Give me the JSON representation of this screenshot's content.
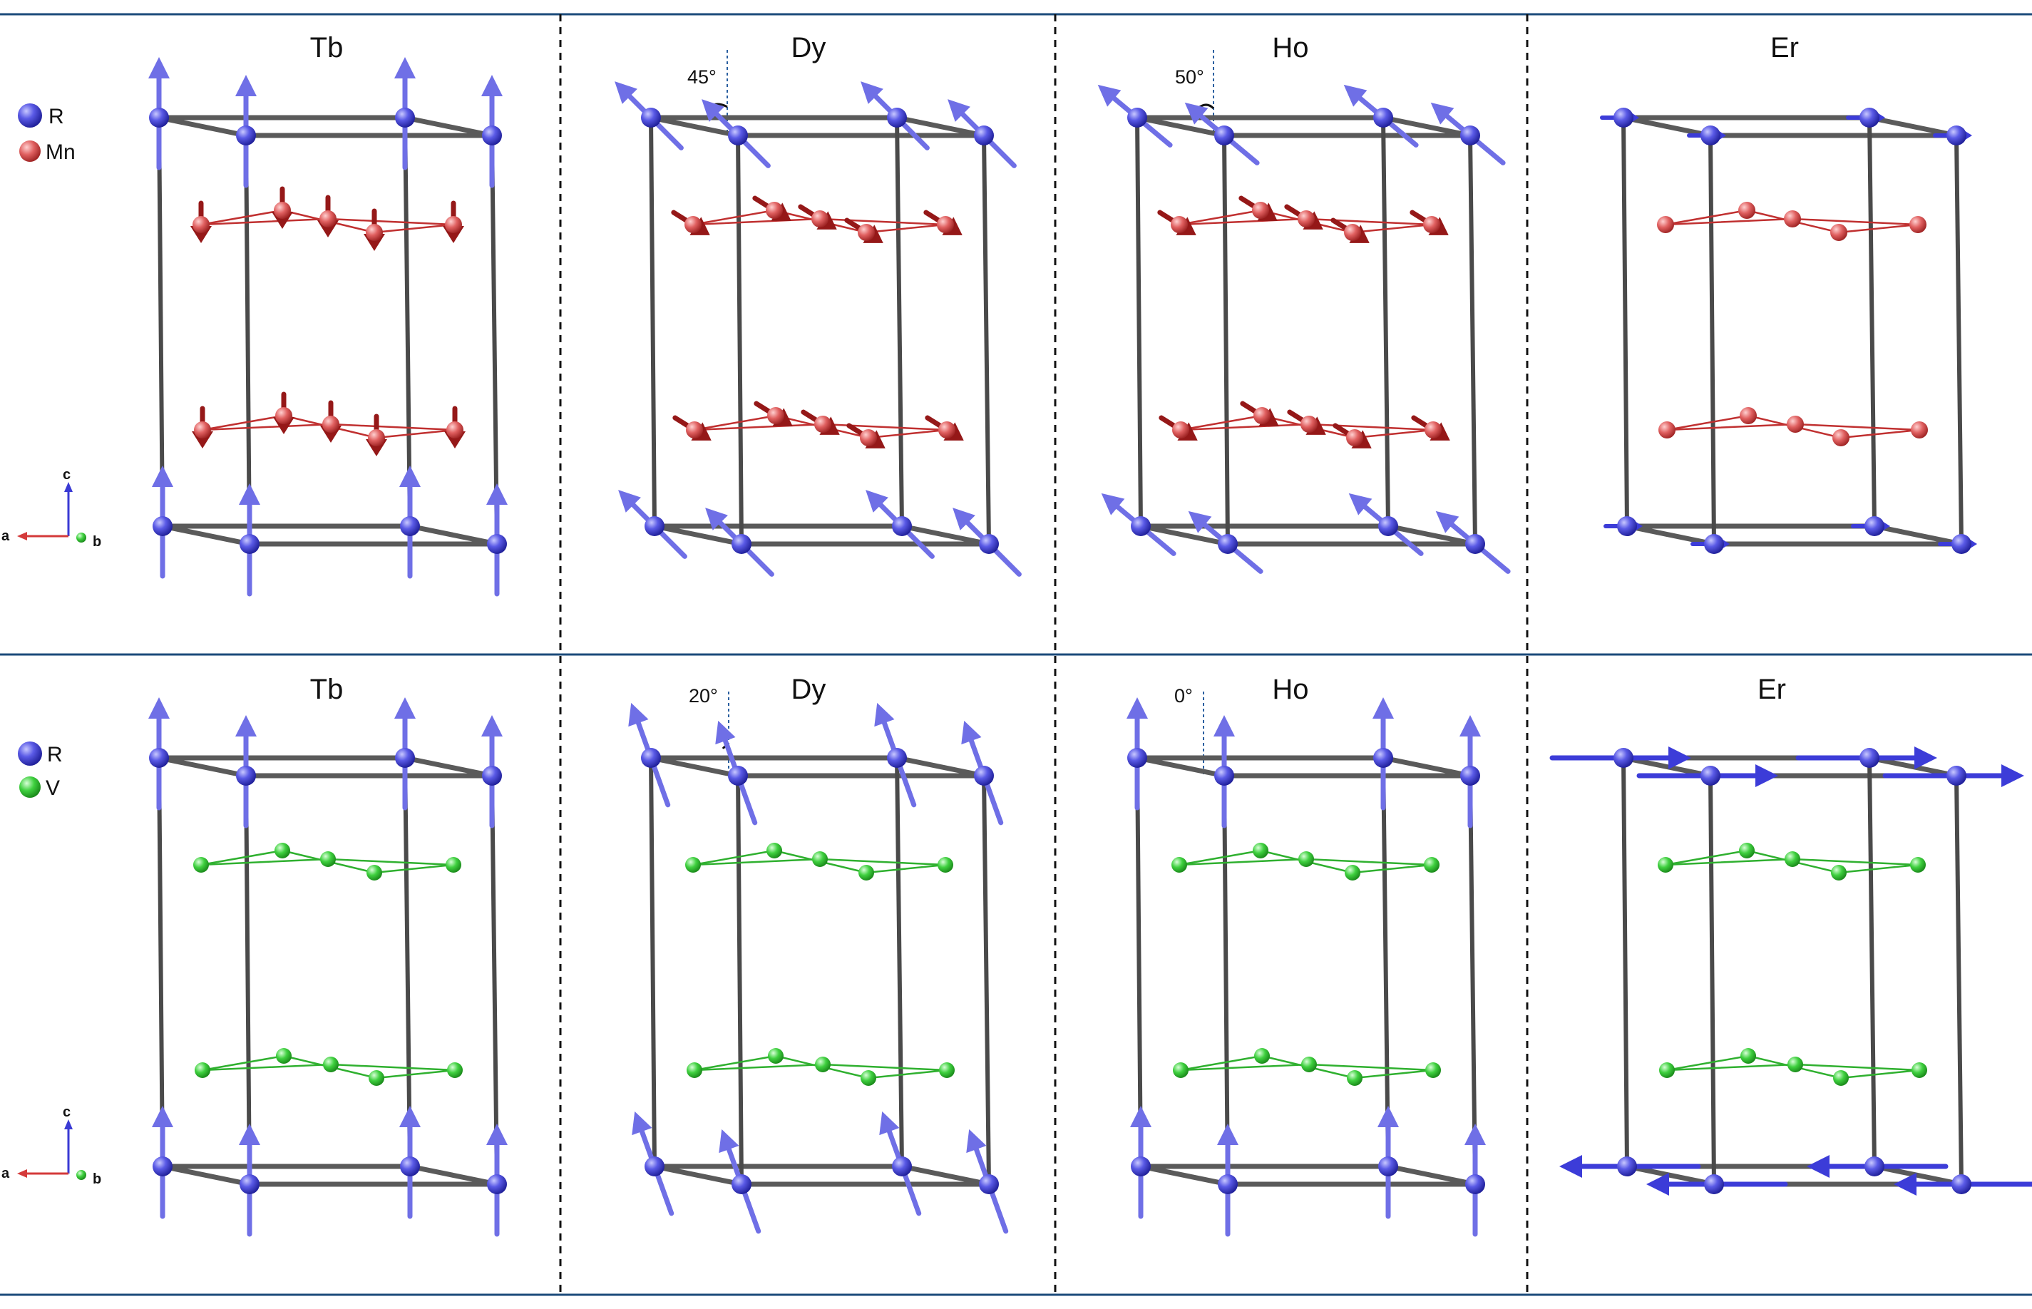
{
  "rows": [
    {
      "legend": {
        "r": "R",
        "b": "Mn"
      },
      "axes": {
        "c": "c",
        "a": "a",
        "b": "b"
      },
      "panels": [
        {
          "title": "Tb",
          "angle": ""
        },
        {
          "title": "Dy",
          "angle": "45°"
        },
        {
          "title": "Ho",
          "angle": "50°"
        },
        {
          "title": "Er",
          "angle": ""
        }
      ]
    },
    {
      "legend": {
        "r": "R",
        "b": "V"
      },
      "axes": {
        "c": "c",
        "a": "a",
        "b": "b"
      },
      "panels": [
        {
          "title": "Tb",
          "angle": ""
        },
        {
          "title": "Dy",
          "angle": "20°"
        },
        {
          "title": "Ho",
          "angle": "0°"
        },
        {
          "title": "Er",
          "angle": ""
        }
      ]
    }
  ],
  "colors": {
    "r_atom": "#5858e0",
    "r_arrow": "#6f6fe6",
    "r_arrow_er": "#3c3cd8",
    "mn_atom": "#e05d5d",
    "mn_arrow": "#951818",
    "v_atom": "#3ccc3c",
    "v_bond": "#2fb02f",
    "frame": "#1b4a7a",
    "cell": "#555555",
    "axis_a": "#d43a3a",
    "axis_c": "#3a3ad4",
    "axis_b": "#2fb02f"
  },
  "arrow_modes": {
    "rare_earth": [
      "up",
      "tilt45",
      "tilt50",
      "short-a",
      "up",
      "tilt20",
      "up",
      "long-a"
    ],
    "mn": [
      "down",
      "inplane",
      "inplane",
      "none"
    ]
  }
}
